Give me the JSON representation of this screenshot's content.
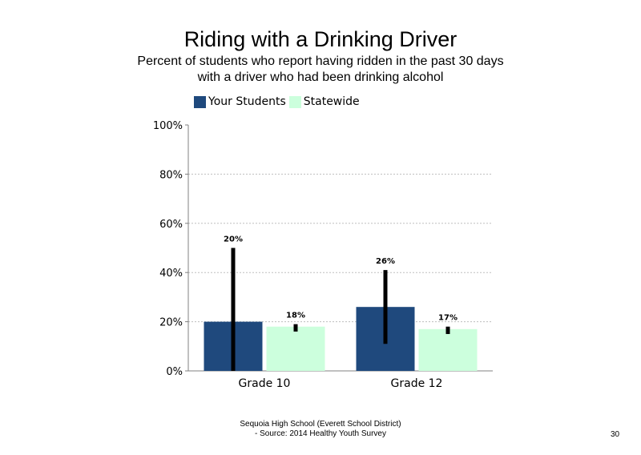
{
  "slide": {
    "title": "Riding with a Drinking Driver",
    "subtitle": "Percent of students who report having ridden in the past 30 days with a driver who had been drinking alcohol",
    "footer_line1": "Sequoia High School (Everett School District)",
    "footer_line2": "- Source: 2014 Healthy Youth Survey",
    "page_number": "30"
  },
  "colors": {
    "your_students": "#1f497d",
    "statewide": "#ccffdd",
    "error_bar": "#000000",
    "grid": "#bfbfbf"
  },
  "chart_data": {
    "type": "bar",
    "title": "Riding with a Drinking Driver",
    "subtitle": "Percent of students who report having ridden in the past 30 days with a driver who had been drinking alcohol",
    "categories": [
      "Grade 10",
      "Grade 12"
    ],
    "series": [
      {
        "name": "Your Students",
        "values": [
          20,
          26
        ],
        "labels": [
          "20%",
          "26%"
        ],
        "error_low": [
          0,
          11
        ],
        "error_high": [
          50,
          41
        ]
      },
      {
        "name": "Statewide",
        "values": [
          18,
          17
        ],
        "labels": [
          "18%",
          "17%"
        ],
        "error_low": [
          16,
          15
        ],
        "error_high": [
          19,
          18
        ]
      }
    ],
    "ylim": [
      0,
      100
    ],
    "yticks": [
      0,
      20,
      40,
      60,
      80,
      100
    ],
    "ytick_labels": [
      "0%",
      "20%",
      "40%",
      "60%",
      "80%",
      "100%"
    ],
    "grid": true,
    "legend_position": "top-left"
  }
}
